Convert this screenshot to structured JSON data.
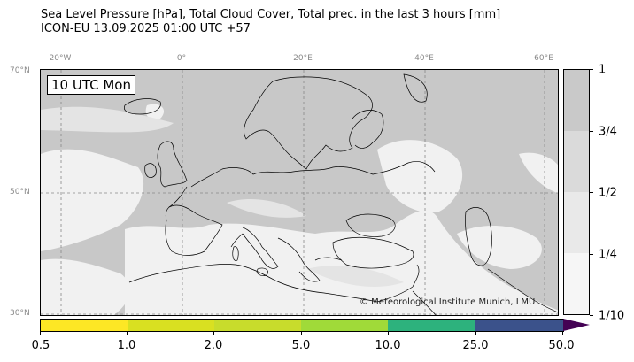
{
  "title": {
    "line1": "Sea Level Pressure [hPa], Total Cloud Cover, Total prec. in the last 3 hours [mm]",
    "line2": "ICON-EU 13.09.2025 01:00 UTC +57"
  },
  "map": {
    "valid_time": "10 UTC Mon",
    "copyright": "© Meteorological Institute Munich, LMU",
    "longitude_labels": [
      "20°W",
      "0°",
      "20°E",
      "40°E",
      "60°E"
    ],
    "latitude_labels": [
      "70°N",
      "50°N",
      "30°N"
    ],
    "colors": {
      "cloud_cover_base": "#c8c8c8",
      "clear": "#f4f4f4",
      "coastline": "#000000",
      "grid": "#888888"
    }
  },
  "cloud_cover_legend": {
    "labels": [
      "1",
      "3/4",
      "1/2",
      "1/4",
      "1/10"
    ],
    "colors": [
      "#c9c9c9",
      "#dadada",
      "#e9e9e9",
      "#f6f6f6"
    ]
  },
  "precip_legend": {
    "labels": [
      "0.5",
      "1.0",
      "2.0",
      "5.0",
      "10.0",
      "25.0",
      "50.0"
    ],
    "colors": [
      "#fde725",
      "#d9e021",
      "#a0da39",
      "#2db27d",
      "#3b528b"
    ],
    "extend_color": "#440154"
  }
}
